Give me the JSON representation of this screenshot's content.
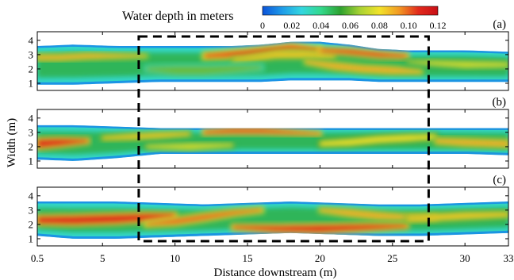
{
  "chart_data": {
    "type": "heatmap",
    "colorbar": {
      "title": "Water depth in meters",
      "min": 0,
      "max": 0.12,
      "ticks": [
        "0",
        "0.02",
        "0.04",
        "0.06",
        "0.08",
        "0.10",
        "0.12"
      ],
      "colors": [
        "#0b53d9",
        "#1e9be8",
        "#33d6e0",
        "#33d98c",
        "#2ea12f",
        "#a8d234",
        "#f2e32a",
        "#f29a24",
        "#e22a1c",
        "#c80f16"
      ]
    },
    "ylabel": "Width (m)",
    "xlabel": "Distance downstream (m)",
    "x_ticks": [
      "0.5",
      "5",
      "10",
      "15",
      "20",
      "25",
      "30",
      "33"
    ],
    "x_tick_values": [
      0.5,
      5,
      10,
      15,
      20,
      25,
      30,
      33
    ],
    "xlim": [
      0.5,
      33
    ],
    "y_ticks": [
      "1",
      "2",
      "3",
      "4"
    ],
    "y_tick_values": [
      1,
      2,
      3,
      4
    ],
    "ylim": [
      0.5,
      4.6
    ],
    "highlight_box": {
      "x": [
        7.5,
        27.5
      ]
    },
    "panels": [
      {
        "label": "(a)",
        "channel": {
          "x": [
            0.5,
            3,
            6,
            9,
            12,
            14,
            16,
            18,
            20,
            22,
            24,
            26,
            28,
            30,
            33
          ],
          "bottom": [
            0.9,
            0.9,
            1.0,
            1.1,
            1.1,
            1.1,
            1.1,
            1.2,
            1.2,
            1.2,
            1.1,
            1.1,
            1.1,
            1.1,
            1.1
          ],
          "top": [
            3.6,
            3.7,
            3.6,
            3.6,
            3.6,
            3.6,
            3.7,
            3.9,
            3.9,
            3.7,
            3.4,
            3.3,
            3.3,
            3.3,
            3.2
          ]
        },
        "deep_zones": [
          {
            "x": [
              12,
              15,
              18,
              20
            ],
            "center": [
              2.9,
              3.1,
              3.5,
              3.3
            ],
            "width": [
              0.3,
              0.5,
              0.4,
              0.3
            ],
            "depth": 0.105
          },
          {
            "x": [
              14,
              17,
              19,
              21
            ],
            "center": [
              2.6,
              3.0,
              3.0,
              2.9
            ],
            "width": [
              0.2,
              0.4,
              0.4,
              0.2
            ],
            "depth": 0.085
          },
          {
            "x": [
              19,
              21,
              23,
              25,
              27
            ],
            "center": [
              2.5,
              2.2,
              2.0,
              1.9,
              1.8
            ],
            "width": [
              0.2,
              0.4,
              0.4,
              0.4,
              0.2
            ],
            "depth": 0.09
          },
          {
            "x": [
              20,
              22,
              24,
              26
            ],
            "center": [
              3.3,
              3.2,
              3.0,
              2.9
            ],
            "width": [
              0.2,
              0.3,
              0.3,
              0.2
            ],
            "depth": 0.11
          },
          {
            "x": [
              0.5,
              2,
              4,
              6,
              8
            ],
            "center": [
              2.8,
              2.8,
              2.9,
              2.9,
              2.9
            ],
            "width": [
              0.3,
              0.3,
              0.3,
              0.2,
              0.1
            ],
            "depth": 0.09
          },
          {
            "x": [
              26,
              28,
              30,
              33
            ],
            "center": [
              2.5,
              2.4,
              2.3,
              2.3
            ],
            "width": [
              0.1,
              0.3,
              0.4,
              0.3
            ],
            "depth": 0.075
          },
          {
            "x": [
              8,
              10,
              12,
              14,
              16
            ],
            "center": [
              2.0,
              1.9,
              1.9,
              2.0,
              2.1
            ],
            "width": [
              0.3,
              0.6,
              0.6,
              0.5,
              0.3
            ],
            "depth": 0.06
          }
        ]
      },
      {
        "label": "(b)",
        "channel": {
          "x": [
            0.5,
            3,
            6,
            9,
            12,
            15,
            18,
            21,
            24,
            27,
            30,
            33
          ],
          "bottom": [
            1.1,
            1.0,
            1.2,
            1.5,
            1.5,
            1.5,
            1.5,
            1.5,
            1.5,
            1.5,
            1.5,
            1.4
          ],
          "top": [
            3.5,
            3.5,
            3.4,
            3.3,
            3.3,
            3.3,
            3.3,
            3.3,
            3.3,
            3.3,
            3.3,
            3.3
          ]
        },
        "deep_zones": [
          {
            "x": [
              0.5,
              2,
              4
            ],
            "center": [
              2.2,
              2.3,
              2.4
            ],
            "width": [
              0.6,
              0.5,
              0.2
            ],
            "depth": 0.11
          },
          {
            "x": [
              12,
              14,
              16,
              18,
              20
            ],
            "center": [
              3.0,
              3.1,
              3.1,
              3.0,
              2.9
            ],
            "width": [
              0.2,
              0.3,
              0.3,
              0.2,
              0.1
            ],
            "depth": 0.11
          },
          {
            "x": [
              5,
              7,
              9,
              11
            ],
            "center": [
              2.6,
              2.7,
              2.8,
              2.9
            ],
            "width": [
              0.2,
              0.3,
              0.3,
              0.2
            ],
            "depth": 0.085
          },
          {
            "x": [
              20,
              22,
              24,
              26,
              28
            ],
            "center": [
              2.2,
              2.3,
              2.5,
              2.6,
              2.7
            ],
            "width": [
              0.3,
              0.4,
              0.4,
              0.4,
              0.3
            ],
            "depth": 0.08
          },
          {
            "x": [
              28,
              30,
              33
            ],
            "center": [
              2.4,
              2.3,
              2.2
            ],
            "width": [
              0.3,
              0.4,
              0.4
            ],
            "depth": 0.09
          },
          {
            "x": [
              8,
              11,
              14
            ],
            "center": [
              2.0,
              2.0,
              2.1
            ],
            "width": [
              0.2,
              0.4,
              0.2
            ],
            "depth": 0.075
          }
        ]
      },
      {
        "label": "(c)",
        "channel": {
          "x": [
            0.5,
            3,
            6,
            9,
            12,
            15,
            18,
            21,
            24,
            27,
            30,
            33
          ],
          "bottom": [
            1.2,
            1.0,
            1.0,
            1.1,
            1.2,
            1.3,
            1.4,
            1.3,
            1.2,
            1.2,
            1.3,
            1.4
          ],
          "top": [
            3.6,
            3.6,
            3.6,
            3.5,
            3.4,
            3.5,
            3.6,
            3.5,
            3.4,
            3.4,
            3.5,
            3.6
          ]
        },
        "deep_zones": [
          {
            "x": [
              0.5,
              3,
              6,
              8,
              10
            ],
            "center": [
              2.3,
              2.3,
              2.4,
              2.5,
              2.6
            ],
            "width": [
              0.5,
              0.6,
              0.6,
              0.5,
              0.3
            ],
            "depth": 0.11
          },
          {
            "x": [
              8,
              10,
              12,
              14,
              16
            ],
            "center": [
              2.0,
              2.2,
              2.5,
              2.8,
              3.0
            ],
            "width": [
              0.2,
              0.4,
              0.4,
              0.3,
              0.2
            ],
            "depth": 0.1
          },
          {
            "x": [
              14,
              17,
              20,
              23,
              26
            ],
            "center": [
              1.8,
              1.7,
              1.7,
              1.8,
              1.9
            ],
            "width": [
              0.2,
              0.4,
              0.5,
              0.4,
              0.2
            ],
            "depth": 0.11
          },
          {
            "x": [
              20,
              22,
              24,
              26,
              28
            ],
            "center": [
              3.0,
              2.8,
              2.6,
              2.5,
              2.5
            ],
            "width": [
              0.2,
              0.4,
              0.4,
              0.3,
              0.2
            ],
            "depth": 0.09
          },
          {
            "x": [
              26,
              28,
              30,
              33
            ],
            "center": [
              2.4,
              2.5,
              2.6,
              2.7
            ],
            "width": [
              0.3,
              0.4,
              0.4,
              0.3
            ],
            "depth": 0.085
          }
        ]
      }
    ]
  }
}
